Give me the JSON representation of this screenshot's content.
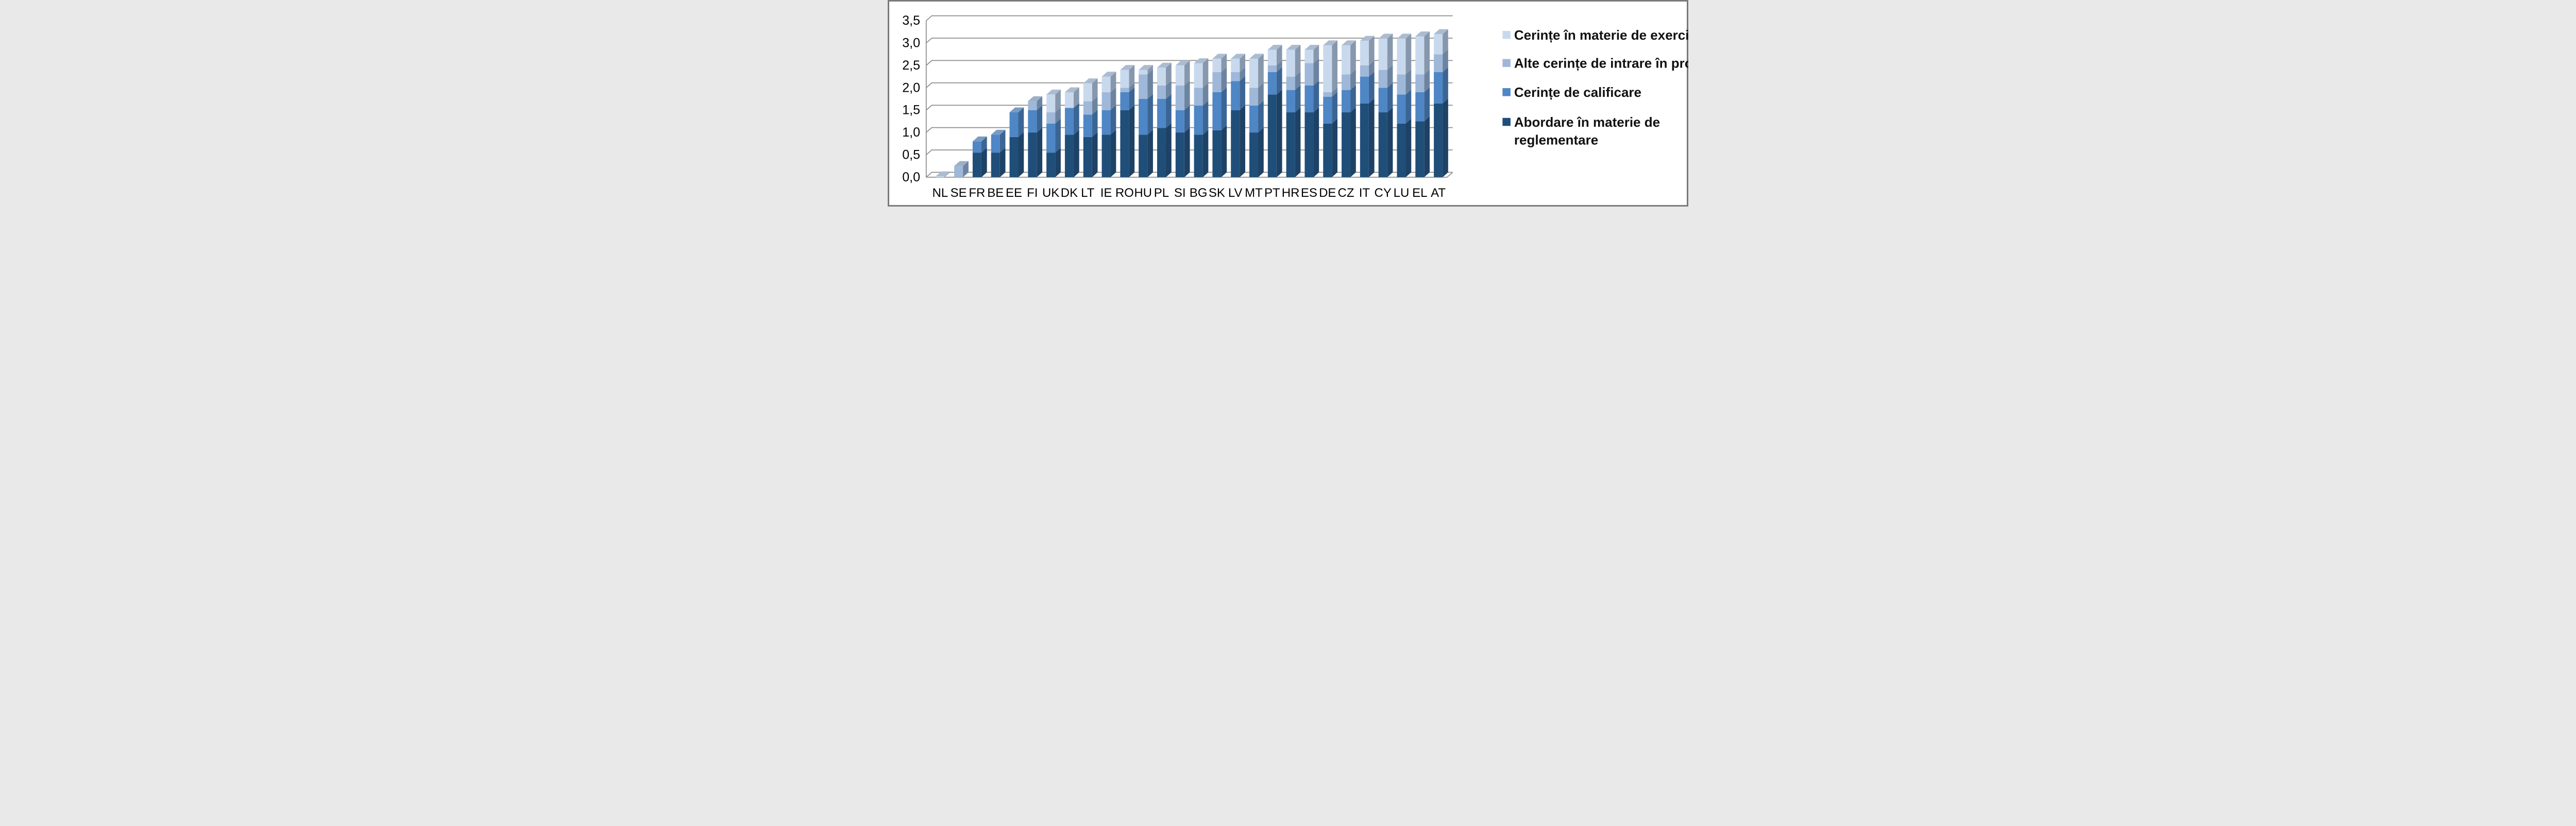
{
  "figure": {
    "background": "#FFFFFF",
    "border_color": "#7A7A7A",
    "plot_line_color": "#8E8E8E"
  },
  "chart_data": {
    "type": "bar",
    "stacked": true,
    "effect": "3d",
    "title": "",
    "xlabel": "",
    "ylabel": "",
    "ylim": [
      0,
      3.5
    ],
    "ytick_step": 0.5,
    "decimal_separator": ",",
    "grid": true,
    "legend_position": "right",
    "categories": [
      "NL",
      "SE",
      "FR",
      "BE",
      "EE",
      "FI",
      "UK",
      "DK",
      "LT",
      "IE",
      "RO",
      "HU",
      "PL",
      "SI",
      "BG",
      "SK",
      "LV",
      "MT",
      "PT",
      "HR",
      "ES",
      "DE",
      "CZ",
      "IT",
      "CY",
      "LU",
      "EL",
      "AT"
    ],
    "series": [
      {
        "name": "Abordare în materie de reglementare",
        "color": "#1F4E79",
        "values": [
          0,
          0,
          0.55,
          0.55,
          0.9,
          1.0,
          0.55,
          0.95,
          0.9,
          0.95,
          1.5,
          0.95,
          1.1,
          1.0,
          0.95,
          1.05,
          1.5,
          1.0,
          1.85,
          1.45,
          1.45,
          1.2,
          1.45,
          1.65,
          1.45,
          1.2,
          1.25,
          1.65
        ]
      },
      {
        "name": "Cerințe de calificare",
        "color": "#4E86C6",
        "values": [
          0,
          0,
          0.25,
          0.4,
          0.55,
          0.5,
          0.65,
          0.6,
          0.5,
          0.55,
          0.4,
          0.8,
          0.65,
          0.5,
          0.65,
          0.85,
          0.65,
          0.6,
          0.5,
          0.5,
          0.6,
          0.6,
          0.5,
          0.6,
          0.55,
          0.65,
          0.65,
          0.7
        ]
      },
      {
        "name": "Alte cerințe de intrare în profesie",
        "color": "#9FB8D9",
        "values": [
          0,
          0.25,
          0,
          0,
          0,
          0.2,
          0.25,
          0,
          0.3,
          0.4,
          0.1,
          0.55,
          0.3,
          0.55,
          0.4,
          0.45,
          0.2,
          0.4,
          0.15,
          0.3,
          0.5,
          0.1,
          0.35,
          0.25,
          0.4,
          0.45,
          0.4,
          0.4
        ]
      },
      {
        "name": "Cerințe în materie de exercitare",
        "color": "#C9D9ED",
        "values": [
          0.02,
          0,
          0,
          0,
          0,
          0,
          0.4,
          0.35,
          0.4,
          0.35,
          0.4,
          0.1,
          0.4,
          0.45,
          0.55,
          0.3,
          0.3,
          0.65,
          0.35,
          0.6,
          0.3,
          1.05,
          0.65,
          0.55,
          0.7,
          0.8,
          0.85,
          0.45
        ]
      }
    ]
  },
  "axes": {
    "y_ticks": [
      "0,0",
      "0,5",
      "1,0",
      "1,5",
      "2,0",
      "2,5",
      "3,0",
      "3,5"
    ]
  },
  "legend": {
    "items": [
      {
        "label": "Cerințe în materie de exercitare",
        "color": "#C9D9ED"
      },
      {
        "label": "Alte cerințe de intrare în profesie",
        "color": "#9FB8D9"
      },
      {
        "label": "Cerințe de calificare",
        "color": "#4E86C6"
      },
      {
        "label": "Abordare în materie de",
        "label2": "reglementare",
        "color": "#1F4E79"
      }
    ]
  }
}
